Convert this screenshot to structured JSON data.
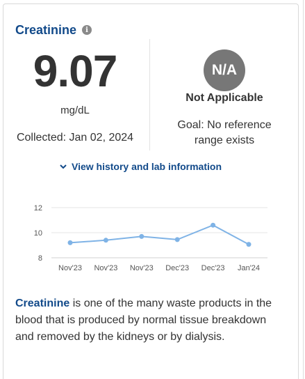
{
  "test": {
    "name": "Creatinine",
    "value": "9.07",
    "unit": "mg/dL",
    "collected": "Collected: Jan 02, 2024"
  },
  "status": {
    "badge": "N/A",
    "label": "Not Applicable",
    "goal_line1": "Goal: No reference",
    "goal_line2": "range exists"
  },
  "history_link": "View history and lab information",
  "icons": {
    "info": "info-icon",
    "chevron": "chevron-down-icon"
  },
  "colors": {
    "brand_blue": "#124a8a",
    "badge_gray": "#777777",
    "line_blue": "#7fb3e6"
  },
  "description": {
    "term": "Creatinine",
    "text": " is one of the many waste products in the blood that is produced by normal tissue breakdown and removed by the kidneys or by dialysis."
  },
  "chart_data": {
    "type": "line",
    "categories": [
      "Nov'23",
      "Nov'23",
      "Nov'23",
      "Dec'23",
      "Dec'23",
      "Jan'24"
    ],
    "values": [
      9.2,
      9.4,
      9.7,
      9.45,
      10.6,
      9.07
    ],
    "yticks": [
      8,
      10,
      12
    ],
    "ylim": [
      8,
      12
    ],
    "grid": true
  }
}
